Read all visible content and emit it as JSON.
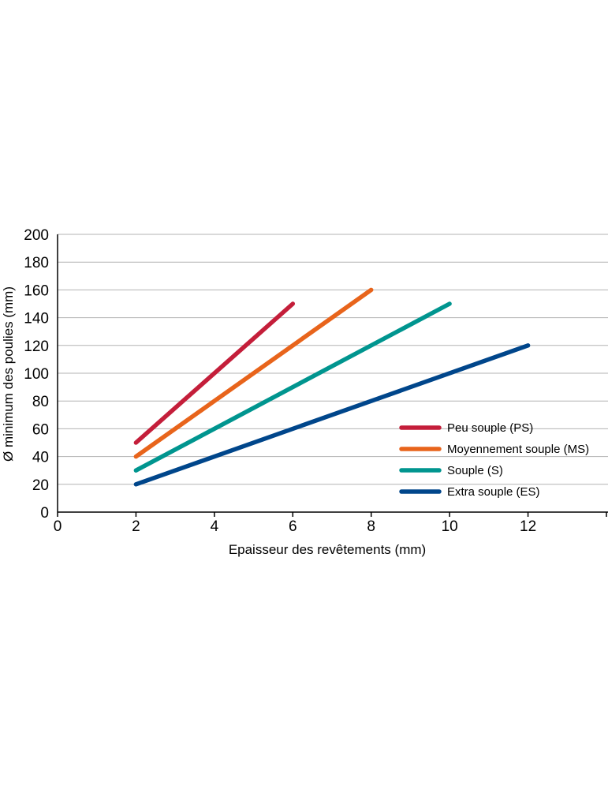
{
  "chart_data": {
    "type": "line",
    "title": "",
    "xlabel": "Epaisseur des revêtements (mm)",
    "ylabel": "Ø minimum des poulies (mm)",
    "xlim": [
      0,
      14
    ],
    "ylim": [
      0,
      200
    ],
    "xticks": [
      0,
      2,
      4,
      6,
      8,
      10,
      12
    ],
    "yticks": [
      0,
      20,
      40,
      60,
      80,
      100,
      120,
      140,
      160,
      180,
      200
    ],
    "grid": "horizontal",
    "legend_position": "bottom-right",
    "series": [
      {
        "name": "Peu souple (PS)",
        "color": "#c41e3a",
        "x": [
          2,
          6
        ],
        "y": [
          50,
          150
        ]
      },
      {
        "name": "Moyennement souple (MS)",
        "color": "#e8641b",
        "x": [
          2,
          8
        ],
        "y": [
          40,
          160
        ]
      },
      {
        "name": "Souple (S)",
        "color": "#00958f",
        "x": [
          2,
          10
        ],
        "y": [
          30,
          150
        ]
      },
      {
        "name": "Extra souple (ES)",
        "color": "#00468b",
        "x": [
          2,
          12
        ],
        "y": [
          20,
          120
        ]
      }
    ]
  }
}
